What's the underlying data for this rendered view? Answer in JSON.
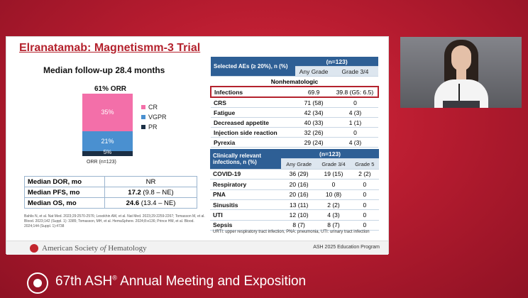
{
  "slide": {
    "title": "Elranatamab: Magnetismm-3 Trial",
    "followup": "Median follow-up 28.4 months",
    "orr_title": "61% ORR",
    "orr_n": "ORR (n=123)",
    "dor_rows": [
      {
        "label": "Median DOR, mo",
        "bold": "",
        "value": "NR"
      },
      {
        "label": "Median PFS, mo",
        "bold": "17.2",
        "value": " (9.8 – NE)"
      },
      {
        "label": "Median OS, mo",
        "bold": "24.6",
        "value": " (13.4 – NE)"
      }
    ],
    "references": "Bahlis N, et al. Nat Med. 2023;29:2570-2576; Lesokhin AM, et al. Nat Med. 2023;29:2259-2267; Tomasson M, et al. Blood. 2023;142 (Suppl. 1): 3385; Tomasson, MH, et al. HemaSphere. 2024;8:e136; Prince HM, et al. Blood. 2024;144 (Suppl. 1):4738",
    "ash_name_pre": "American Society ",
    "ash_name_of": "of",
    "ash_name_post": " Hematology",
    "program": "ASH 2025 Education Program",
    "abbreviations": "URTI: upper respiratory tract infection, PNA: pneumonia, UTI: urinary tract infection"
  },
  "chart_data": {
    "type": "bar",
    "title": "61% ORR",
    "xlabel": "ORR (n=123)",
    "categories": [
      "ORR (n=123)"
    ],
    "series": [
      {
        "name": "CR",
        "values": [
          35
        ],
        "color": "#f36fa9"
      },
      {
        "name": "VGPR",
        "values": [
          21
        ],
        "color": "#4a90d0"
      },
      {
        "name": "PR",
        "values": [
          5
        ],
        "color": "#1b2f45"
      }
    ],
    "value_labels": [
      "35%",
      "21%",
      "5%"
    ],
    "stacked": true,
    "legend": "right"
  },
  "ae_table": {
    "header_label": "Selected AEs (≥ 20%), n (%)",
    "n_label": "(n=123)",
    "col_any": "Any Grade",
    "col_34": "Grade 3/4",
    "section": "Nonhematologic",
    "rows": [
      {
        "name": "Infections",
        "any": "69.9",
        "g34": "39.8 (G5: 6.5)",
        "highlight": true
      },
      {
        "name": "CRS",
        "any": "71 (58)",
        "g34": "0"
      },
      {
        "name": "Fatigue",
        "any": "42 (34)",
        "g34": "4 (3)"
      },
      {
        "name": "Decreased appetite",
        "any": "40 (33)",
        "g34": "1 (1)"
      },
      {
        "name": "Injection side reaction",
        "any": "32 (26)",
        "g34": "0"
      },
      {
        "name": "Pyrexia",
        "any": "29 (24)",
        "g34": "4 (3)"
      }
    ]
  },
  "inf_table": {
    "header_label": "Clinically relevant infections, n (%)",
    "n_label": "(n=123)",
    "col_any": "Any Grade",
    "col_34": "Grade 3/4",
    "col_5": "Grade 5",
    "rows": [
      {
        "name": "COVID-19",
        "any": "36 (29)",
        "g34": "19 (15)",
        "g5": "2 (2)"
      },
      {
        "name": "Respiratory",
        "any": "20 (16)",
        "g34": "0",
        "g5": "0"
      },
      {
        "name": "PNA",
        "any": "20 (16)",
        "g34": "10 (8)",
        "g5": "0"
      },
      {
        "name": "Sinusitis",
        "any": "13 (11)",
        "g34": "2 (2)",
        "g5": "0"
      },
      {
        "name": "UTI",
        "any": "12 (10)",
        "g34": "4 (3)",
        "g5": "0"
      },
      {
        "name": "Sepsis",
        "any": "8 (7)",
        "g34": "8 (7)",
        "g5": "0"
      }
    ]
  },
  "banner": {
    "title_pre": "67th ASH",
    "reg": "®",
    "title_post": " Annual Meeting and Exposition"
  }
}
